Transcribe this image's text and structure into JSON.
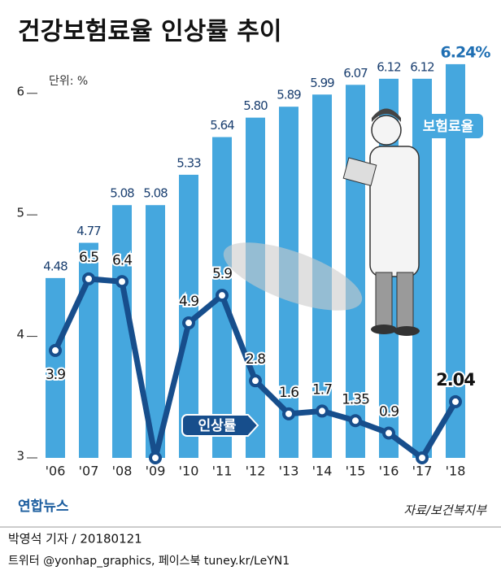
{
  "chart_data": {
    "type": "bar_line",
    "title": "건강보험료율 인상률 추이",
    "unit_label": "단위: %",
    "categories": [
      "'06",
      "'07",
      "'08",
      "'09",
      "'10",
      "'11",
      "'12",
      "'13",
      "'14",
      "'15",
      "'16",
      "'17",
      "'18"
    ],
    "series": [
      {
        "name": "보험료율",
        "type": "bar",
        "color": "#45a7de",
        "values": [
          4.48,
          4.77,
          5.08,
          5.08,
          5.33,
          5.64,
          5.8,
          5.89,
          5.99,
          6.07,
          6.12,
          6.12,
          6.24
        ],
        "value_labels": [
          "4.48",
          "4.77",
          "5.08",
          "5.08",
          "5.33",
          "5.64",
          "5.80",
          "5.89",
          "5.99",
          "6.07",
          "6.12",
          "6.12",
          "6.24%"
        ]
      },
      {
        "name": "인상률",
        "type": "line",
        "axis": "y2",
        "color": "#174e8c",
        "values": [
          3.9,
          6.5,
          6.4,
          0,
          4.9,
          5.9,
          2.8,
          1.6,
          1.7,
          1.35,
          0.9,
          0,
          2.04
        ],
        "value_labels": [
          "3.9",
          "6.5",
          "6.4",
          null,
          "4.9",
          "5.9",
          "2.8",
          "1.6",
          "1.7",
          "1.35",
          "0.9",
          null,
          "2.04"
        ]
      }
    ],
    "ylim": [
      3,
      6.4
    ],
    "yticks": [
      3,
      4,
      5,
      6
    ],
    "y2lim": [
      0,
      15
    ],
    "source": "자료/보건복지부",
    "logo": "연합뉴스",
    "byline": "박영석 기자 / 20180121",
    "social": "트위터 @yonhap_graphics, 페이스북 tuney.kr/LeYN1"
  }
}
